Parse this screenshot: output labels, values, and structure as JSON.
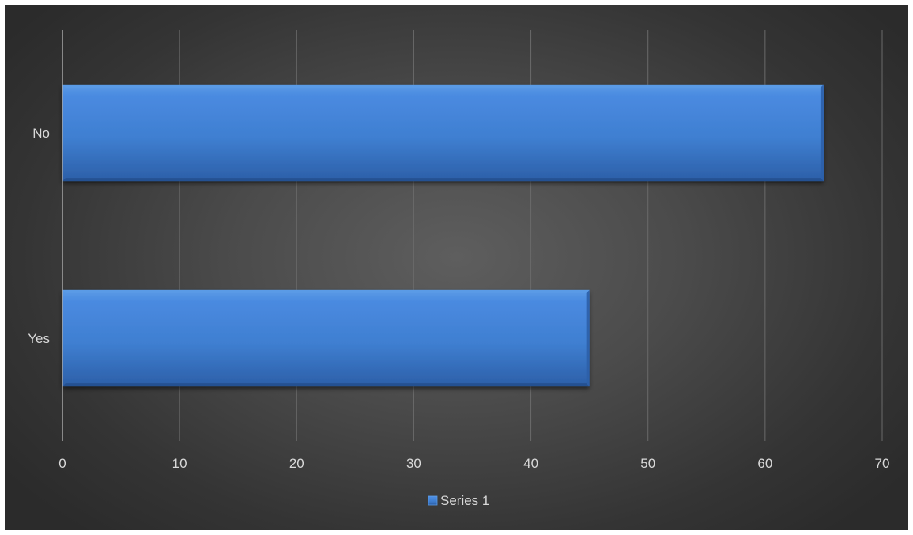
{
  "chart_data": {
    "type": "bar",
    "orientation": "horizontal",
    "categories": [
      "No",
      "Yes"
    ],
    "series": [
      {
        "name": "Series 1",
        "values": [
          65,
          45
        ]
      }
    ],
    "xlim": [
      0,
      70
    ],
    "xticks": [
      0,
      10,
      20,
      30,
      40,
      50,
      60,
      70
    ],
    "grid": true,
    "legend": "bottom",
    "colors": {
      "bar": "#3f7fd1",
      "bar_light": "#5b9be6",
      "bar_dark": "#2c5fa8",
      "background": "#4b4b4b",
      "text": "#d9d9d9",
      "grid": "#6a6a6a"
    }
  }
}
